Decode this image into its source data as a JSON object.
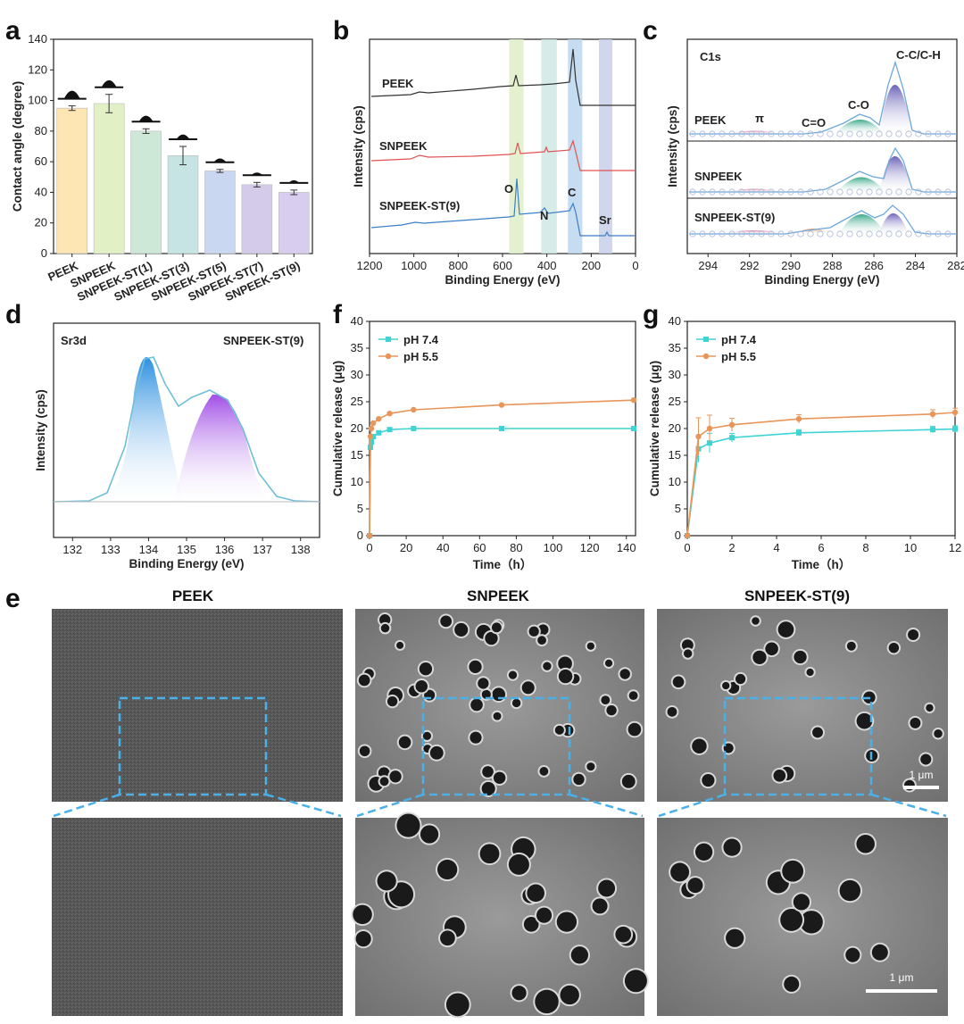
{
  "panel_letters": [
    "a",
    "b",
    "c",
    "d",
    "e",
    "f",
    "g"
  ],
  "panel_a": {
    "ylabel": "Contact angle (degree)",
    "chart_data": {
      "type": "bar",
      "categories": [
        "PEEK",
        "SNPEEK",
        "SNPEEK-ST(1)",
        "SNPEEK-ST(3)",
        "SNPEEK-ST(5)",
        "SNPEEK-ST(7)",
        "SNPEEK-ST(9)"
      ],
      "values": [
        95,
        98,
        80,
        64,
        54,
        45,
        40
      ],
      "errors": [
        1.5,
        6,
        1.5,
        6,
        1,
        1.5,
        1.5
      ],
      "colors": [
        "#fde5b4",
        "#e2f0c6",
        "#cde8d6",
        "#c6e4e4",
        "#cad7f1",
        "#d4cbeb",
        "#d8cdee"
      ],
      "ylim": [
        0,
        140
      ],
      "yticks": [
        "0",
        "20",
        "40",
        "60",
        "80",
        "100",
        "120",
        "140"
      ]
    }
  },
  "panel_b": {
    "xlabel": "Binding Energy (eV)",
    "ylabel": "Intensity (cps)",
    "series_labels": [
      "PEEK",
      "SNPEEK",
      "SNPEEK-ST(9)"
    ],
    "peak_labels": [
      "O",
      "N",
      "C",
      "Sr"
    ],
    "chart_data": {
      "type": "line",
      "xlim": [
        1200,
        0
      ],
      "xticks": [
        "1200",
        "1000",
        "800",
        "600",
        "400",
        "200",
        "0"
      ],
      "highlight_bands": [
        {
          "from": 570,
          "to": 505,
          "color": "#dfeec8"
        },
        {
          "from": 425,
          "to": 355,
          "color": "#cfe9e4"
        },
        {
          "from": 305,
          "to": 240,
          "color": "#bcd6ee"
        },
        {
          "from": 165,
          "to": 105,
          "color": "#c8cfe8"
        }
      ],
      "series": [
        {
          "name": "PEEK",
          "color": "#333333"
        },
        {
          "name": "SNPEEK",
          "color": "#e05252"
        },
        {
          "name": "SNPEEK-ST(9)",
          "color": "#3b7fc4"
        }
      ]
    }
  },
  "panel_c": {
    "xlabel": "Binding Energy (eV)",
    "ylabel": "Intensity (cps)",
    "title": "C1s",
    "series_labels": [
      "PEEK",
      "SNPEEK",
      "SNPEEK-ST(9)"
    ],
    "peak_labels": [
      "π",
      "C=O",
      "C-O",
      "C-C/C-H"
    ],
    "chart_data": {
      "type": "line",
      "xlim": [
        295,
        282
      ],
      "xticks": [
        "294",
        "292",
        "290",
        "288",
        "286",
        "284",
        "282"
      ]
    }
  },
  "panel_d": {
    "xlabel": "Binding Energy (eV)",
    "ylabel": "Intensity (cps)",
    "title": "Sr3d",
    "sample": "SNPEEK-ST(9)",
    "chart_data": {
      "type": "line",
      "xlim": [
        131.5,
        138.5
      ],
      "xticks": [
        "132",
        "133",
        "134",
        "135",
        "136",
        "137",
        "138"
      ],
      "peaks": [
        134.1,
        135.8
      ]
    }
  },
  "panel_f": {
    "xlabel": "Time（h）",
    "ylabel": "Cumulative release (μg)",
    "chart_data": {
      "type": "line",
      "xlim": [
        0,
        145
      ],
      "ylim": [
        0,
        40
      ],
      "xticks": [
        "0",
        "20",
        "40",
        "60",
        "80",
        "100",
        "120",
        "140"
      ],
      "yticks": [
        "0",
        "5",
        "10",
        "15",
        "20",
        "25",
        "30",
        "35",
        "40"
      ],
      "series": [
        {
          "name": "pH 7.4",
          "color": "#3fd3d3",
          "x": [
            0,
            0.5,
            1,
            2,
            5,
            11,
            24,
            72,
            144
          ],
          "y": [
            0,
            16.5,
            17.5,
            18.5,
            19.2,
            19.8,
            20,
            20,
            20
          ]
        },
        {
          "name": "pH 5.5",
          "color": "#e8955a",
          "x": [
            0,
            0.5,
            1,
            2,
            5,
            11,
            24,
            72,
            144
          ],
          "y": [
            0,
            18.5,
            20,
            21,
            21.8,
            22.8,
            23.5,
            24.4,
            25.3
          ]
        }
      ]
    }
  },
  "panel_g": {
    "xlabel": "Time（h）",
    "ylabel": "Cumulative release (μg)",
    "chart_data": {
      "type": "line",
      "xlim": [
        0,
        12
      ],
      "ylim": [
        0,
        40
      ],
      "xticks": [
        "0",
        "2",
        "4",
        "6",
        "8",
        "10",
        "12"
      ],
      "yticks": [
        "0",
        "5",
        "10",
        "15",
        "20",
        "25",
        "30",
        "35",
        "40"
      ],
      "series": [
        {
          "name": "pH 7.4",
          "color": "#3fd3d3",
          "x": [
            0,
            0.5,
            1,
            2,
            5,
            11,
            12
          ],
          "y": [
            0,
            16.2,
            17.3,
            18.3,
            19.2,
            19.8,
            19.9
          ],
          "err": [
            0,
            2.5,
            1.8,
            0.8,
            0.6,
            0.6,
            0.6
          ]
        },
        {
          "name": "pH 5.5",
          "color": "#e8955a",
          "x": [
            0,
            0.5,
            1,
            2,
            5,
            11,
            12
          ],
          "y": [
            0,
            18.5,
            20,
            20.7,
            21.8,
            22.7,
            23
          ],
          "err": [
            0,
            3.5,
            2.5,
            1.2,
            0.8,
            0.8,
            0.8
          ]
        }
      ]
    }
  },
  "panel_e": {
    "titles": [
      "PEEK",
      "SNPEEK",
      "SNPEEK-ST(9)"
    ],
    "scale_bar": "1 μm"
  }
}
